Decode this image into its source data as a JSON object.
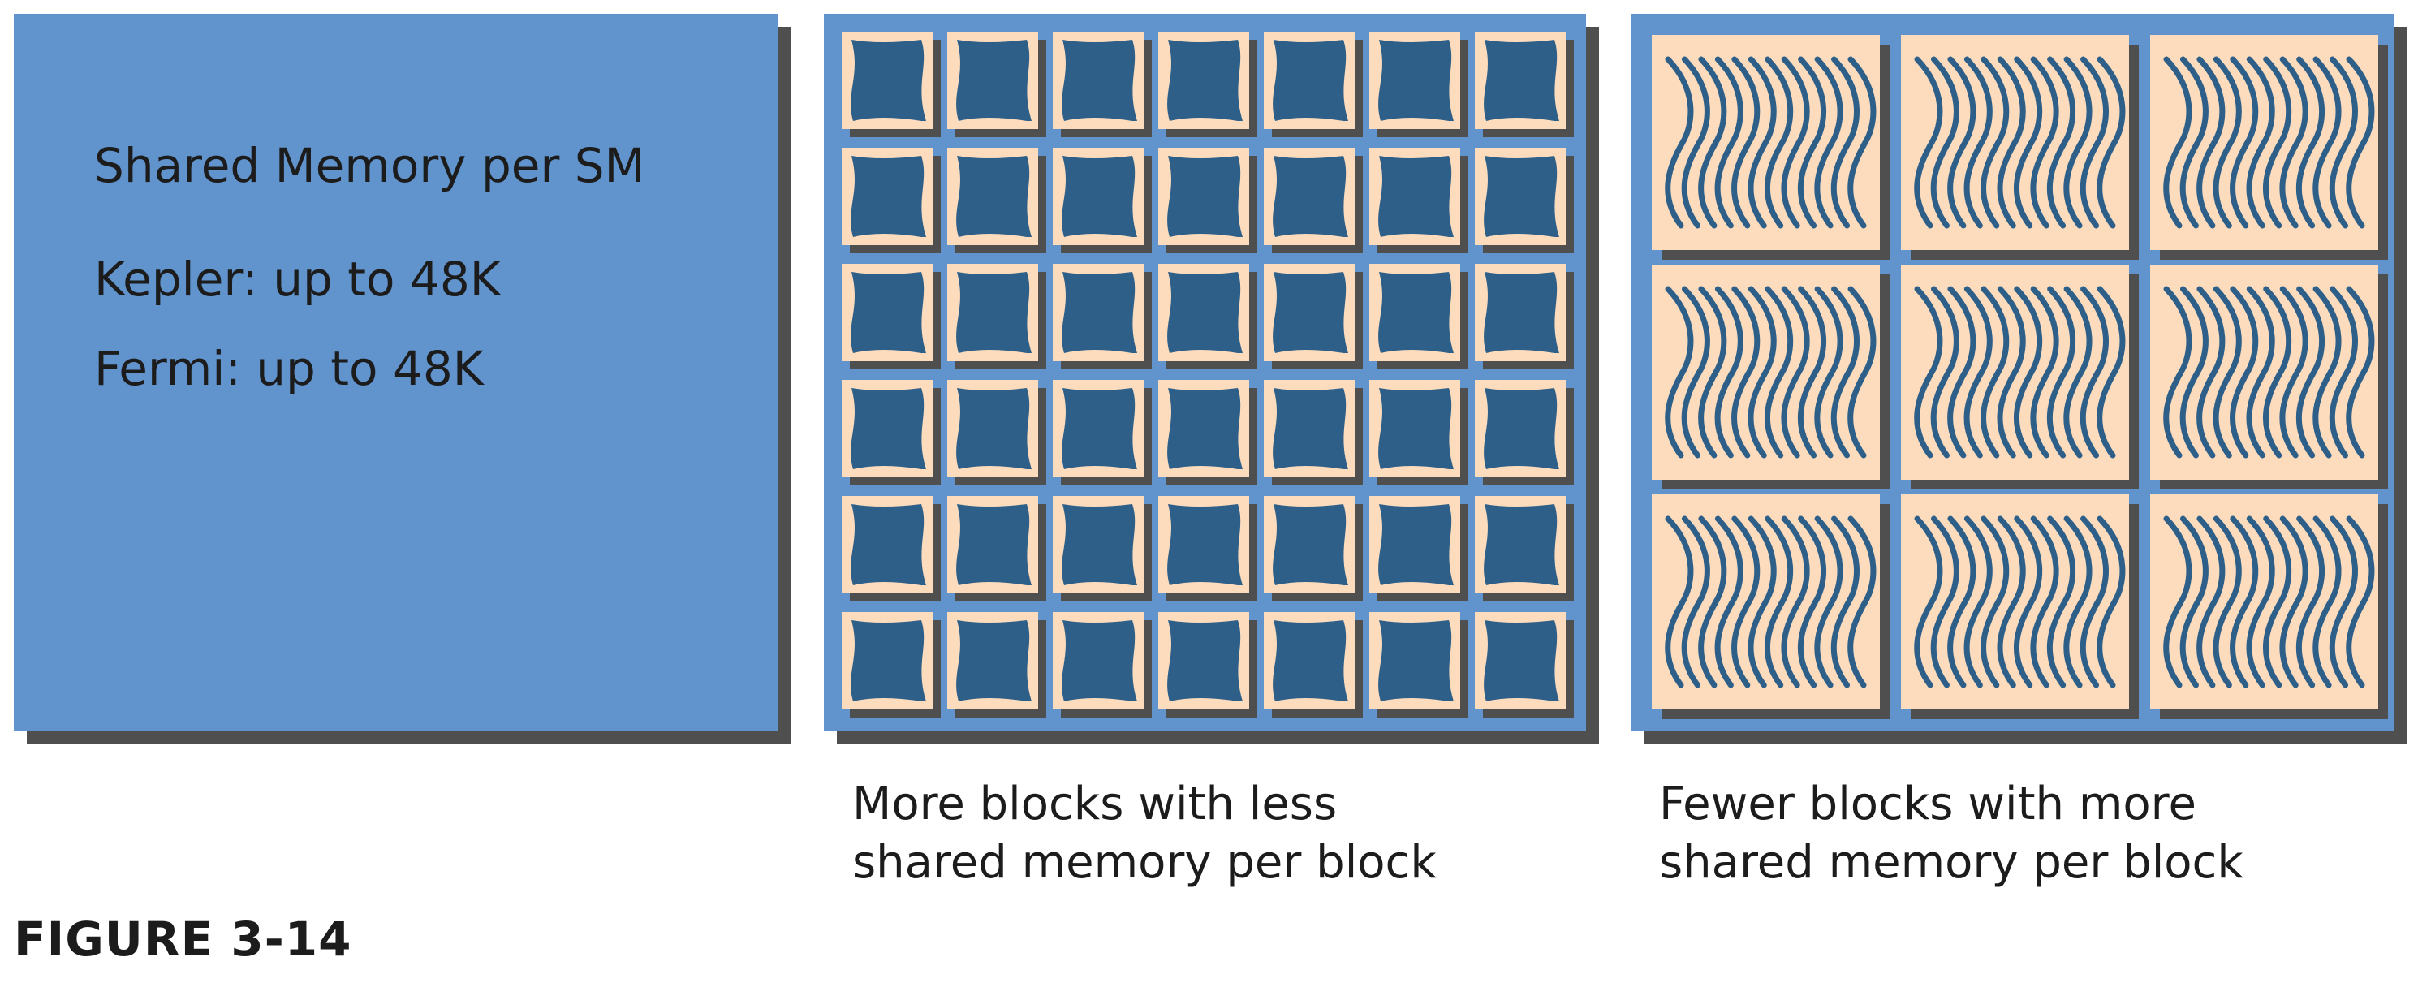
{
  "shared_memory_panel": {
    "title": "Shared Memory per SM",
    "kepler": "Kepler: up to 48K",
    "fermi": "Fermi: up to 48K"
  },
  "more_blocks_panel": {
    "caption_line1": "More blocks with less",
    "caption_line2": "shared memory per block",
    "grid": {
      "rows": 6,
      "cols": 7
    }
  },
  "fewer_blocks_panel": {
    "caption_line1": "Fewer blocks with more",
    "caption_line2": "shared memory per block",
    "grid": {
      "rows": 3,
      "cols": 3,
      "threads_per_block": 12
    }
  },
  "figure_label": "FIGURE 3-14",
  "colors": {
    "panel_blue": "#6193cd",
    "block_peach": "#fddcbd",
    "thread_dark_blue": "#2e5f88",
    "shadow_gray": "#4f4f4f"
  }
}
